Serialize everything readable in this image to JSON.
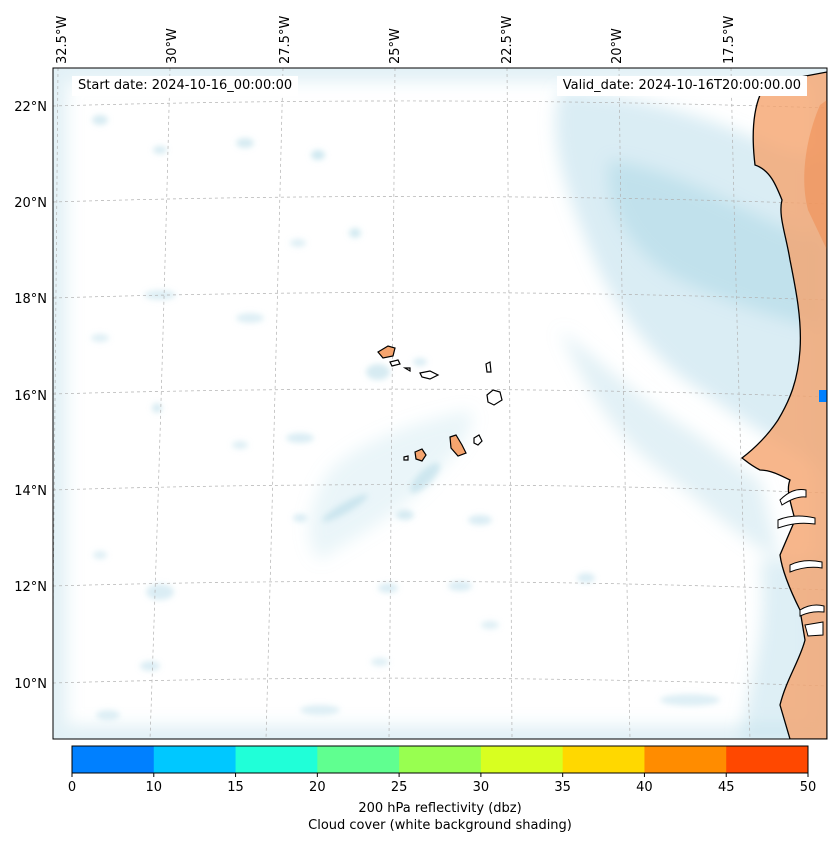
{
  "header": {
    "start_date": "Start date: 2024-10-16_00:00:00",
    "valid_date": "Valid_date: 2024-10-16T20:00:00.00"
  },
  "axes": {
    "lon_labels": [
      "32.5°W",
      "30°W",
      "27.5°W",
      "25°W",
      "22.5°W",
      "20°W",
      "17.5°W"
    ],
    "lat_labels": [
      "22°N",
      "20°N",
      "18°N",
      "16°N",
      "14°N",
      "12°N",
      "10°N"
    ]
  },
  "colorbar": {
    "ticks": [
      "0",
      "10",
      "15",
      "20",
      "25",
      "30",
      "35",
      "40",
      "45",
      "50"
    ],
    "colors": [
      "#0080ff",
      "#00c8ff",
      "#20ffd8",
      "#60ff90",
      "#98ff50",
      "#d8ff20",
      "#ffd800",
      "#ff8c00",
      "#ff4800"
    ],
    "label": "200 hPa reflectivity (dbz)",
    "sublabel": "Cloud cover (white background shading)"
  },
  "colors": {
    "cloud": "#add8e6",
    "land": "#f5a46e",
    "coast": "#000000",
    "grid": "#b0b0b0"
  }
}
